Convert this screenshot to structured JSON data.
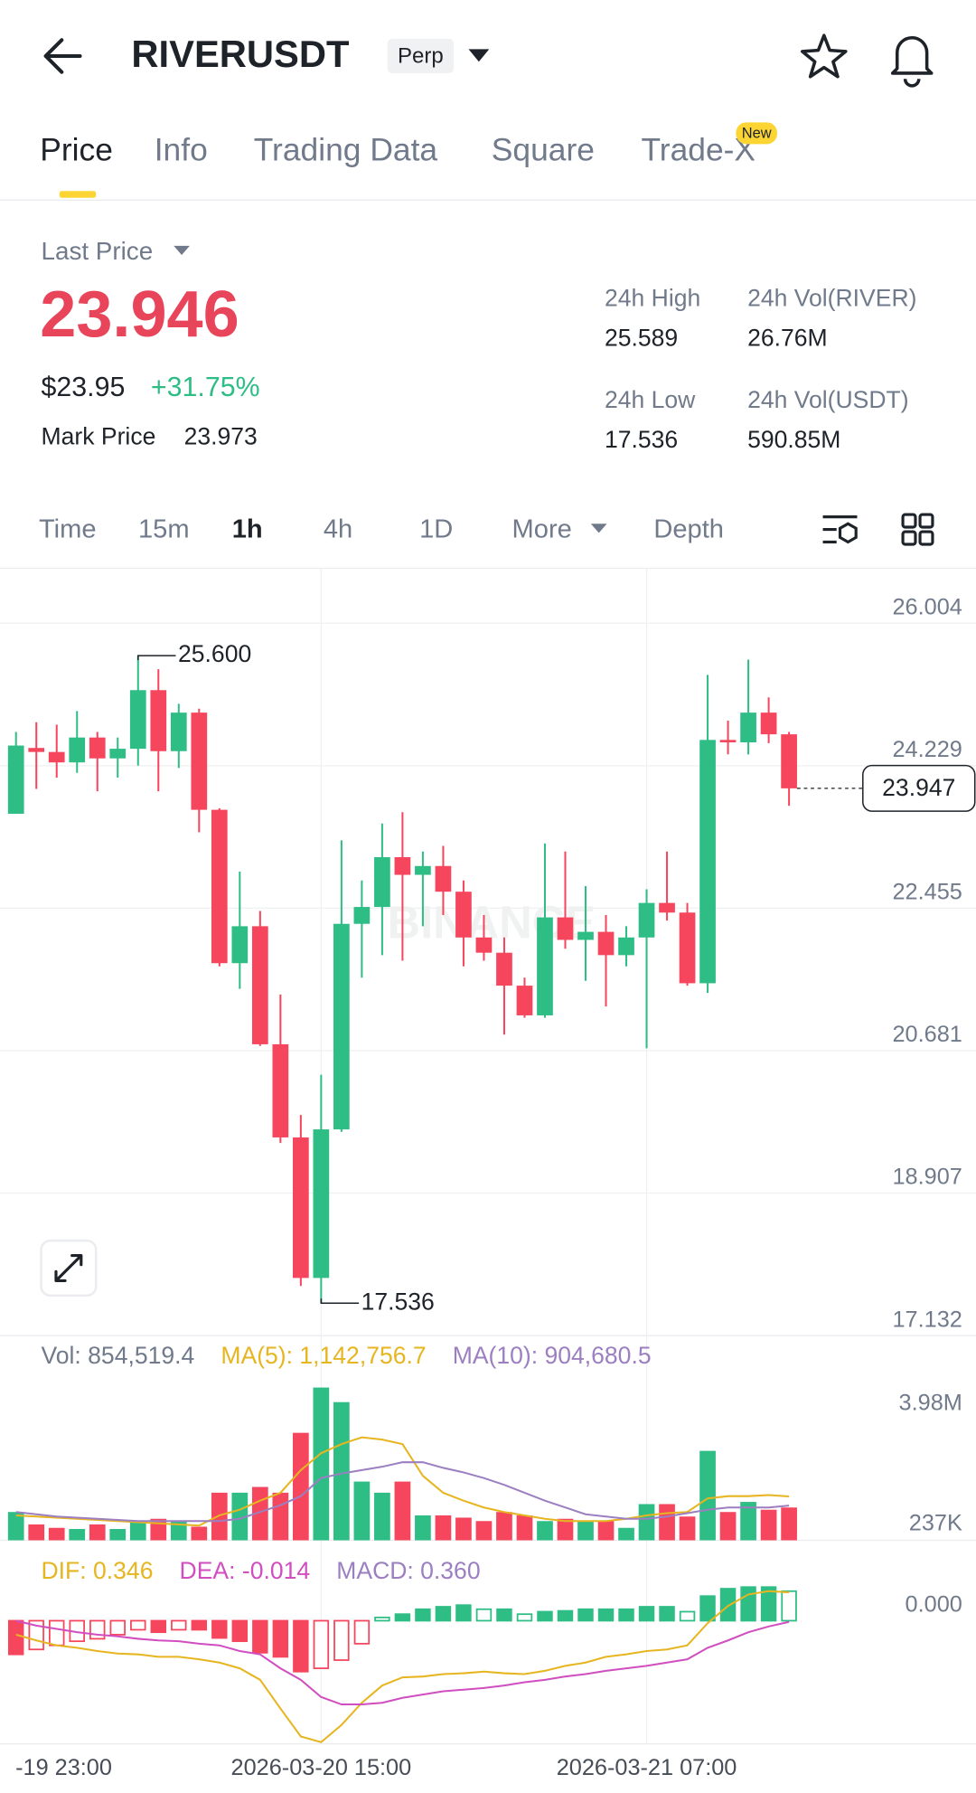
{
  "header": {
    "symbol": "RIVERUSDT",
    "badge": "Perp"
  },
  "tabs": {
    "items": [
      "Price",
      "Info",
      "Trading Data",
      "Square",
      "Trade-X"
    ],
    "badge": "New"
  },
  "ticker": {
    "last_price_label": "Last Price",
    "last_price": "23.946",
    "usd_price": "$23.95",
    "change": "+31.75%",
    "mark_price_label": "Mark Price",
    "mark_price": "23.973",
    "stats": [
      {
        "label": "24h High",
        "value": "25.589"
      },
      {
        "label": "24h Vol(RIVER)",
        "value": "26.76M"
      },
      {
        "label": "24h Low",
        "value": "17.536"
      },
      {
        "label": "24h Vol(USDT)",
        "value": "590.85M"
      }
    ]
  },
  "intervals": [
    "Time",
    "15m",
    "1h",
    "4h",
    "1D",
    "More",
    "Depth"
  ],
  "chart_data": {
    "type": "candlestick",
    "watermark": "BINANCE",
    "up_color": "#2ebd85",
    "down_color": "#f6465d",
    "categories": [
      null,
      null,
      null,
      null,
      null,
      null,
      null,
      null,
      null,
      null,
      null,
      null,
      null,
      null,
      null,
      "2026-03-20 15:00",
      null,
      null,
      null,
      null,
      null,
      null,
      null,
      null,
      null,
      null,
      null,
      null,
      null,
      null,
      null,
      "2026-03-21 07:00",
      null,
      null,
      null,
      null,
      null,
      null,
      null
    ],
    "edge_label": "-19 23:00",
    "open": [
      23.63,
      24.45,
      24.4,
      24.27,
      24.58,
      24.32,
      24.44,
      25.17,
      24.41,
      24.89,
      23.68,
      21.77,
      22.23,
      20.76,
      19.6,
      17.85,
      19.7,
      22.26,
      22.47,
      23.09,
      22.87,
      22.98,
      22.66,
      22.09,
      21.9,
      21.49,
      21.12,
      22.34,
      22.06,
      22.16,
      21.87,
      22.09,
      22.52,
      22.4,
      21.52,
      24.55,
      24.52,
      24.89,
      24.62
    ],
    "high": [
      24.65,
      24.77,
      24.74,
      24.91,
      24.65,
      24.58,
      25.6,
      25.43,
      25.0,
      24.94,
      23.7,
      22.91,
      22.42,
      21.38,
      19.88,
      20.38,
      23.3,
      22.8,
      23.51,
      23.65,
      23.16,
      23.23,
      22.8,
      22.37,
      22.09,
      21.59,
      23.26,
      23.16,
      22.73,
      22.37,
      22.23,
      22.69,
      23.16,
      22.52,
      25.36,
      24.79,
      25.55,
      25.08,
      24.65
    ],
    "low": [
      23.63,
      23.94,
      24.08,
      24.14,
      23.91,
      24.08,
      24.23,
      23.91,
      24.2,
      23.4,
      21.73,
      21.45,
      20.74,
      19.53,
      17.75,
      17.536,
      19.67,
      21.59,
      21.87,
      21.8,
      22.23,
      22.37,
      21.73,
      21.8,
      20.88,
      21.09,
      21.09,
      21.95,
      21.55,
      21.23,
      21.73,
      20.71,
      22.3,
      21.49,
      21.4,
      24.37,
      24.37,
      24.51,
      23.73
    ],
    "close": [
      24.48,
      24.4,
      24.27,
      24.58,
      24.32,
      24.44,
      25.17,
      24.41,
      24.89,
      23.68,
      21.77,
      22.23,
      20.76,
      19.6,
      17.85,
      19.7,
      22.26,
      22.47,
      23.09,
      22.87,
      22.98,
      22.66,
      22.09,
      21.9,
      21.49,
      21.12,
      22.34,
      22.06,
      22.16,
      21.87,
      22.09,
      22.52,
      22.4,
      21.52,
      24.55,
      24.52,
      24.89,
      24.62,
      23.947
    ],
    "ylim": [
      17.132,
      26.687
    ],
    "yticks": [
      26.004,
      24.229,
      22.455,
      20.681,
      18.907,
      17.132
    ],
    "grid": true,
    "last_price": 23.947,
    "max_label": {
      "value": 25.6,
      "label": "25.600"
    },
    "min_label": 17.536,
    "volume": {
      "legend": [
        {
          "text": "Vol: 854,519.4",
          "color": "#707a8a"
        },
        {
          "text": "MA(5): 1,142,756.7",
          "color": "#e6b520"
        },
        {
          "text": "MA(10): 904,680.5",
          "color": "#9c7fc1"
        }
      ],
      "values": [
        737000,
        413000,
        324000,
        295000,
        413000,
        295000,
        501000,
        560000,
        501000,
        354000,
        1240000,
        1240000,
        1390000,
        1240000,
        2800000,
        3980000,
        3600000,
        1530000,
        1240000,
        1530000,
        649000,
        649000,
        590000,
        501000,
        737000,
        649000,
        501000,
        560000,
        501000,
        501000,
        324000,
        943000,
        943000,
        619000,
        2330000,
        737000,
        1000000,
        796000,
        854519.4
      ],
      "series": [
        {
          "color": "#e6b520",
          "values": [
            649000,
            619000,
            590000,
            560000,
            531000,
            501000,
            472000,
            442000,
            413000,
            383000,
            649000,
            796000,
            1032000,
            1238000,
            1828000,
            2270000,
            2506000,
            2683000,
            2624000,
            2506000,
            1680000,
            1238000,
            1032000,
            855000,
            737000,
            649000,
            560000,
            501000,
            501000,
            501000,
            560000,
            649000,
            708000,
            737000,
            1091000,
            1150000,
            1150000,
            1179000,
            1142756.7
          ]
        },
        {
          "color": "#9c7fc1",
          "values": [
            737000,
            678000,
            619000,
            590000,
            560000,
            531000,
            501000,
            501000,
            501000,
            501000,
            501000,
            560000,
            737000,
            914000,
            1150000,
            1621000,
            1739000,
            1828000,
            1916000,
            2034000,
            2034000,
            1887000,
            1769000,
            1621000,
            1445000,
            1238000,
            1032000,
            855000,
            678000,
            619000,
            560000,
            560000,
            619000,
            708000,
            796000,
            855000,
            855000,
            855000,
            904680.5
          ]
        }
      ],
      "ylim": [
        0,
        4380000
      ],
      "yticks": [
        {
          "value": 3980000,
          "label": "3.98M"
        },
        {
          "value": 237000,
          "label": "237K"
        }
      ]
    },
    "macd": {
      "legend": [
        {
          "text": "DIF: 0.346",
          "color": "#e6b520"
        },
        {
          "text": "DEA: -0.014",
          "color": "#d04ec0"
        },
        {
          "text": "MACD: 0.360",
          "color": "#9c7fc1"
        }
      ],
      "hist": [
        -0.41,
        -0.35,
        -0.3,
        -0.25,
        -0.22,
        -0.17,
        -0.11,
        -0.14,
        -0.11,
        -0.11,
        -0.21,
        -0.25,
        -0.39,
        -0.44,
        -0.62,
        -0.58,
        -0.48,
        -0.28,
        0.04,
        0.08,
        0.14,
        0.17,
        0.19,
        0.14,
        0.14,
        0.08,
        0.11,
        0.12,
        0.14,
        0.14,
        0.14,
        0.17,
        0.17,
        0.11,
        0.3,
        0.39,
        0.41,
        0.41,
        0.36
      ],
      "dif": {
        "color": "#e6b520",
        "values": [
          -0.17,
          -0.24,
          -0.3,
          -0.33,
          -0.37,
          -0.4,
          -0.41,
          -0.44,
          -0.44,
          -0.47,
          -0.51,
          -0.58,
          -0.72,
          -1.07,
          -1.41,
          -1.48,
          -1.27,
          -1.0,
          -0.79,
          -0.69,
          -0.68,
          -0.65,
          -0.64,
          -0.62,
          -0.64,
          -0.65,
          -0.61,
          -0.55,
          -0.51,
          -0.44,
          -0.41,
          -0.37,
          -0.35,
          -0.3,
          -0.03,
          0.18,
          0.32,
          0.36,
          0.346
        ]
      },
      "dea": {
        "color": "#d04ec0",
        "values": [
          0.0,
          -0.06,
          -0.1,
          -0.14,
          -0.17,
          -0.19,
          -0.22,
          -0.24,
          -0.25,
          -0.28,
          -0.3,
          -0.37,
          -0.41,
          -0.58,
          -0.72,
          -0.93,
          -1.02,
          -1.02,
          -1.0,
          -0.94,
          -0.9,
          -0.86,
          -0.84,
          -0.82,
          -0.79,
          -0.75,
          -0.72,
          -0.68,
          -0.65,
          -0.61,
          -0.58,
          -0.55,
          -0.51,
          -0.47,
          -0.33,
          -0.24,
          -0.14,
          -0.07,
          -0.014
        ]
      },
      "ylim": [
        -1.5,
        0.98
      ],
      "yticks": [
        {
          "value": 0,
          "label": "0.000"
        }
      ]
    }
  }
}
